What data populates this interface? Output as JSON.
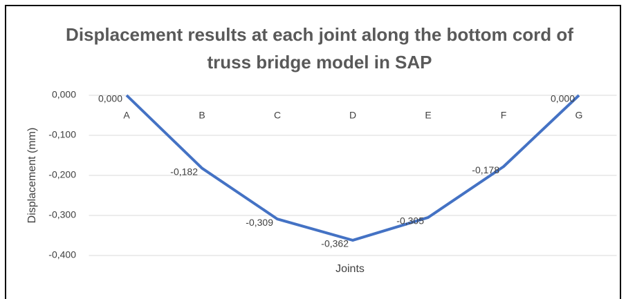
{
  "chart_data": {
    "type": "line",
    "title": "Displacement results at each joint along the bottom cord of truss bridge model in SAP",
    "categories": [
      "A",
      "B",
      "C",
      "D",
      "E",
      "F",
      "G"
    ],
    "series": [
      {
        "name": "Displacement",
        "color": "#4472c4",
        "values": [
          0,
          -0.182,
          -0.309,
          -0.362,
          -0.305,
          -0.178,
          0
        ],
        "value_labels": [
          "0,000",
          "-0,182",
          "-0,309",
          "-0,362",
          "-0,305",
          "-0,178",
          "0,000"
        ]
      }
    ],
    "xlabel": "Joints",
    "ylabel": "Displacement (mm)",
    "ylim": [
      -0.4,
      0
    ],
    "yticks": [
      {
        "value": 0,
        "label": "0,000"
      },
      {
        "value": -0.1,
        "label": "-0,100"
      },
      {
        "value": -0.2,
        "label": "-0,200"
      },
      {
        "value": -0.3,
        "label": "-0,300"
      },
      {
        "value": -0.4,
        "label": "-0,400"
      }
    ],
    "grid": true
  }
}
